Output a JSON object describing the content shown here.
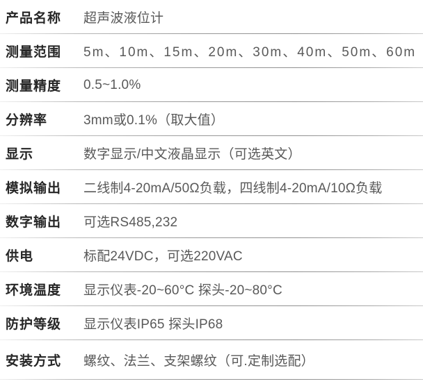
{
  "table": {
    "rows": [
      {
        "label": "产品名称",
        "value": "超声波液位计"
      },
      {
        "label": "测量范围",
        "value": "5m、10m、15m、20m、30m、40m、50m、60m"
      },
      {
        "label": "测量精度",
        "value": "0.5~1.0%"
      },
      {
        "label": "分辨率",
        "value": "3mm或0.1%（取大值）"
      },
      {
        "label": "显示",
        "value": "数字显示/中文液晶显示（可选英文）"
      },
      {
        "label": "模拟输出",
        "value": "二线制4-20mA/50Ω负载，四线制4-20mA/10Ω负载"
      },
      {
        "label": "数字输出",
        "value": "可选RS485,232"
      },
      {
        "label": "供电",
        "value": "标配24VDC，可选220VAC"
      },
      {
        "label": "环境温度",
        "value": "显示仪表-20~60°C 探头-20~80°C"
      },
      {
        "label": "防护等级",
        "value": "显示仪表IP65 探头IP68"
      },
      {
        "label": "安装方式",
        "value": "螺纹、法兰、支架螺纹（可.定制选配）"
      }
    ]
  },
  "colors": {
    "background": "#ffffff",
    "label_text": "#262626",
    "value_text": "#595959",
    "divider_mid": "#8f8f8f",
    "divider_edge": "#efefef"
  }
}
